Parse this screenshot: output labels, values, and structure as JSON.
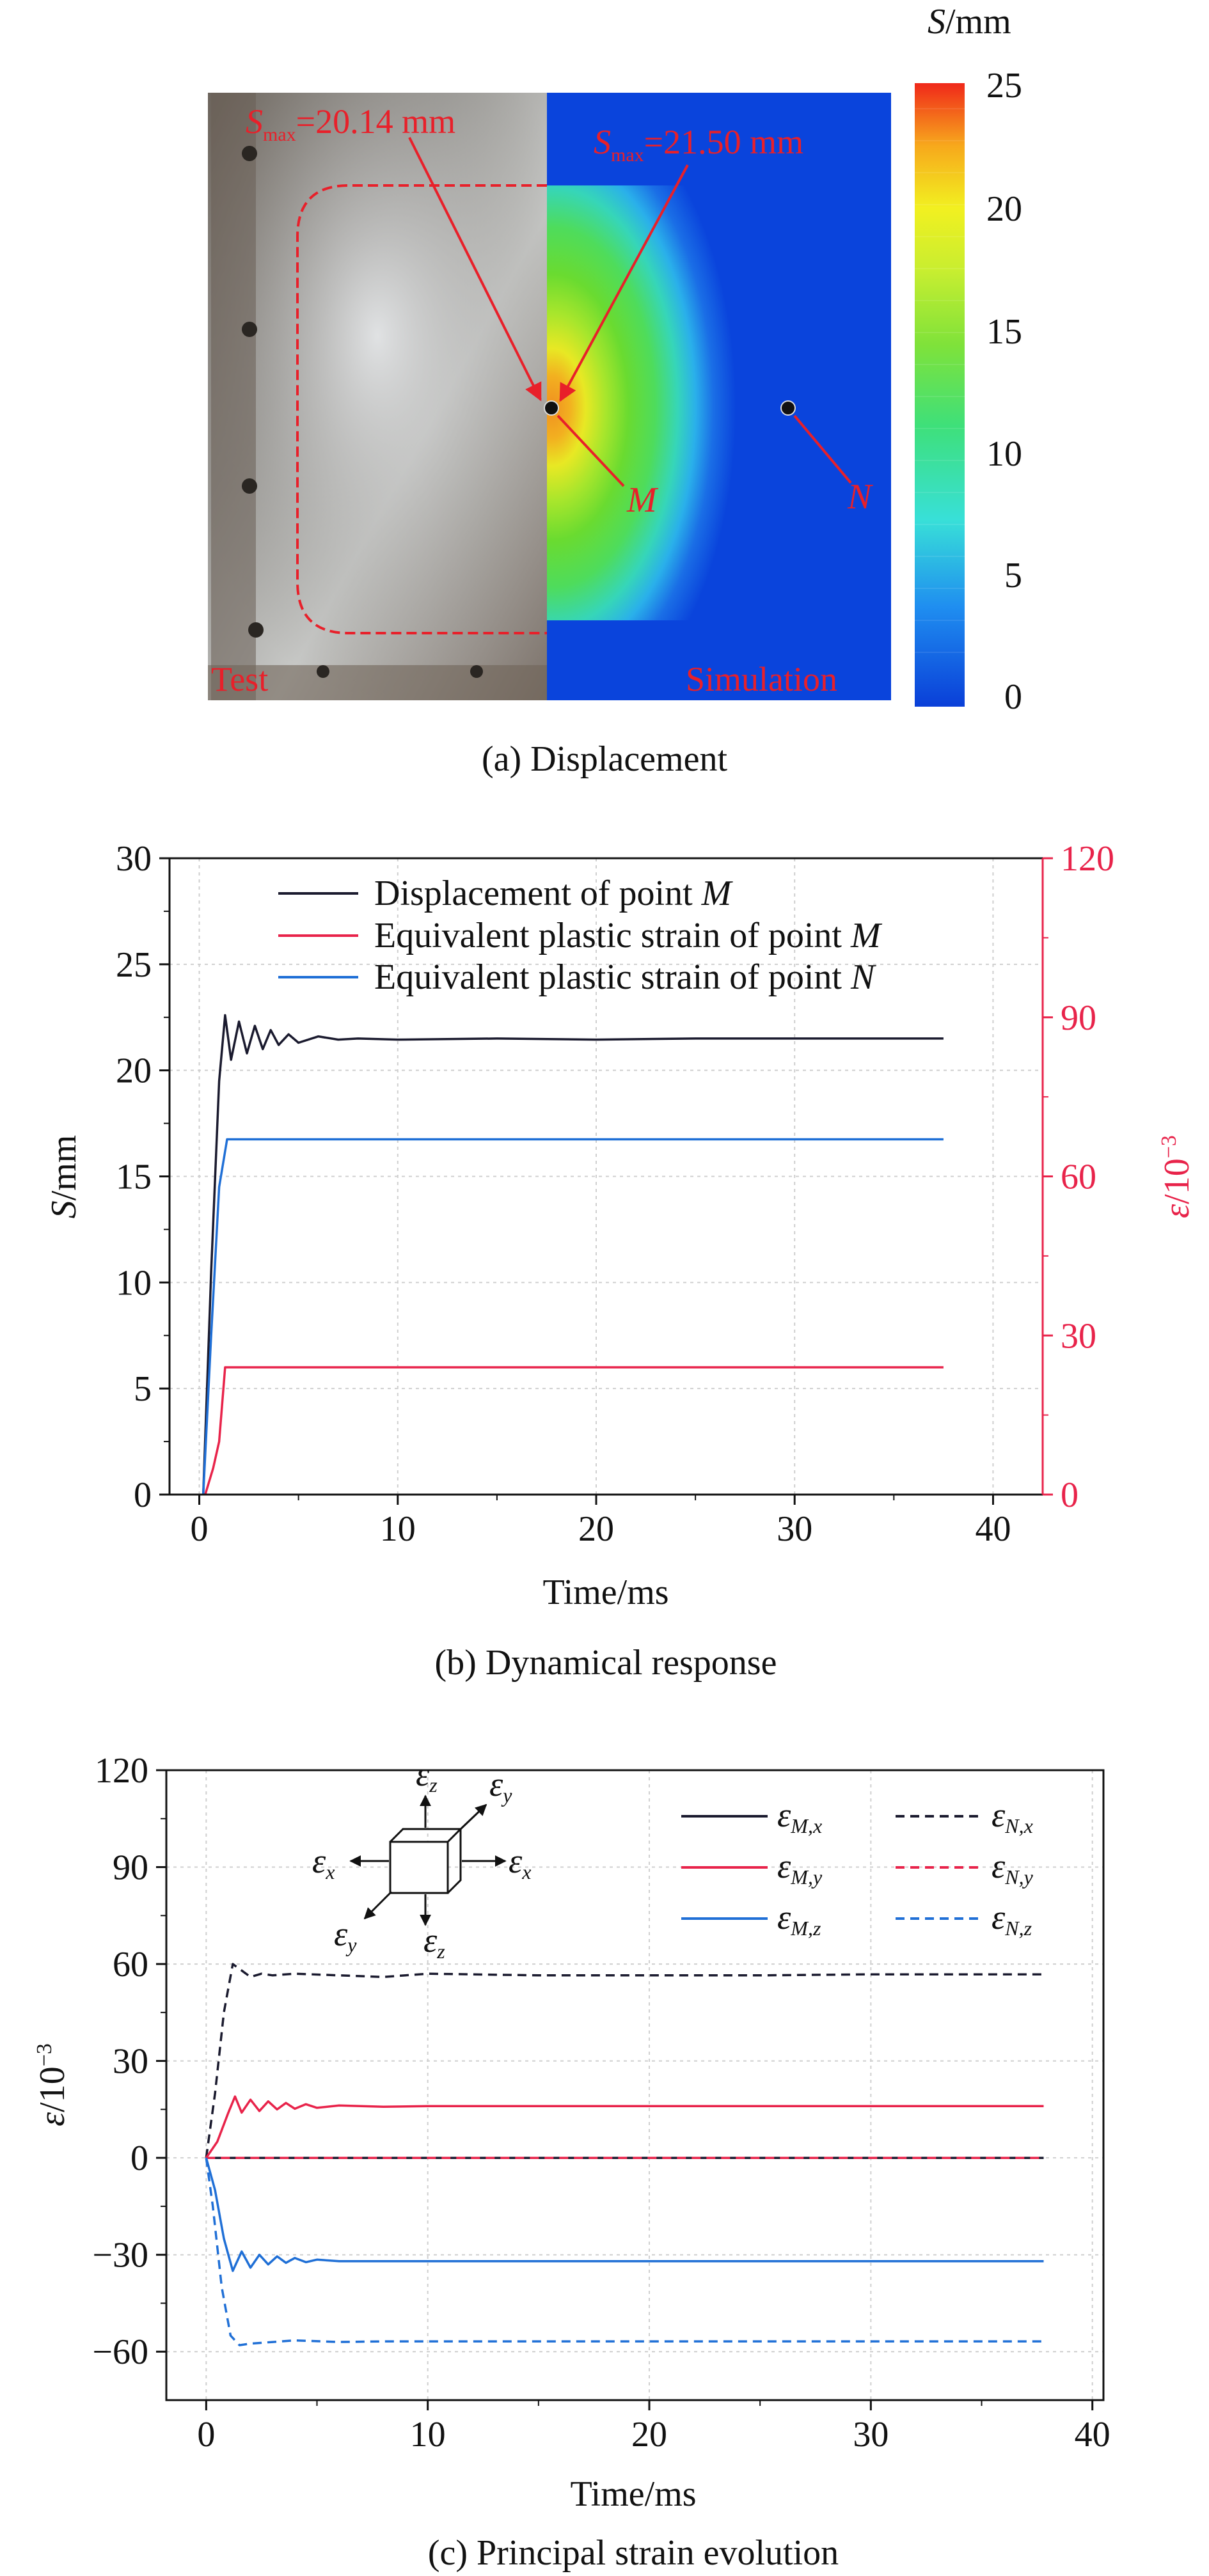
{
  "figure": {
    "panel_a": {
      "caption": "(a) Displacement",
      "colorbar_unit_var": "S",
      "colorbar_unit": "/mm",
      "colorbar_ticks": [
        "25",
        "20",
        "15",
        "10",
        "5",
        "0"
      ],
      "test_smax_var": "S",
      "test_smax_sub": "max",
      "test_smax_value": "=20.14 mm",
      "sim_smax_var": "S",
      "sim_smax_sub": "max",
      "sim_smax_value": "=21.50 mm",
      "point_m": "M",
      "point_n": "N",
      "label_test": "Test",
      "label_simulation": "Simulation"
    },
    "panel_b": {
      "caption": "(b) Dynamical response",
      "xlabel": "Time/ms",
      "ylabel_var": "S",
      "ylabel_unit": "/mm",
      "y2label_var": "ε",
      "y2label_unit": "/10",
      "y2label_exp": "−3",
      "legend": [
        {
          "text": "Displacement of point ",
          "var": "M"
        },
        {
          "text": "Equivalent plastic strain of point ",
          "var": "M"
        },
        {
          "text": "Equivalent plastic strain of point ",
          "var": "N"
        }
      ]
    },
    "panel_c": {
      "caption": "(c) Principal strain evolution",
      "xlabel": "Time/ms",
      "ylabel_var": "ε",
      "ylabel_unit": "/10",
      "ylabel_exp": "−3",
      "legend": [
        {
          "sub": "M,x"
        },
        {
          "sub": "N,x"
        },
        {
          "sub": "M,y"
        },
        {
          "sub": "N,y"
        },
        {
          "sub": "M,z"
        },
        {
          "sub": "N,z"
        }
      ],
      "axis_icon": {
        "var": "ε",
        "labels": [
          "z",
          "y",
          "x",
          "x",
          "y",
          "z"
        ]
      }
    }
  },
  "colors": {
    "black": "#1a1a2e",
    "red": "#e8234a",
    "blue": "#1f6fd6",
    "grid": "#cfcfcf",
    "annotation_red": "#e8202a"
  },
  "chart_data": [
    {
      "type": "line",
      "title": "(b) Dynamical response",
      "xlabel": "Time/ms",
      "ylabel": "S/mm",
      "y2label": "ε/10−3",
      "xlim": [
        -1.5,
        42.5
      ],
      "ylim": [
        0,
        30
      ],
      "y2lim": [
        0,
        120
      ],
      "xticks": [
        0,
        10,
        20,
        30,
        40
      ],
      "yticks": [
        0,
        5,
        10,
        15,
        20,
        25,
        30
      ],
      "y2ticks": [
        0,
        30,
        60,
        90,
        120
      ],
      "grid": true,
      "legend_position": "top",
      "series": [
        {
          "name": "Displacement of point M",
          "axis": "left",
          "color": "#1a1a2e",
          "x": [
            0.2,
            0.6,
            1.0,
            1.3,
            1.6,
            2.0,
            2.4,
            2.8,
            3.2,
            3.6,
            4.0,
            4.5,
            5.0,
            6.0,
            7.0,
            8.0,
            10,
            15,
            20,
            25,
            30,
            35,
            37.5
          ],
          "y": [
            0,
            10.5,
            19.5,
            22.6,
            20.5,
            22.3,
            20.8,
            22.1,
            21.0,
            21.9,
            21.2,
            21.7,
            21.3,
            21.6,
            21.45,
            21.5,
            21.45,
            21.5,
            21.45,
            21.5,
            21.5,
            21.5,
            21.5
          ]
        },
        {
          "name": "Equivalent plastic strain of point M",
          "axis": "right",
          "color": "#e8234a",
          "x": [
            0.3,
            0.7,
            1.0,
            1.3,
            1.6,
            2.0,
            10,
            20,
            30,
            37.5
          ],
          "y": [
            0,
            5,
            10,
            24,
            24,
            24,
            24,
            24,
            24,
            24
          ]
        },
        {
          "name": "Equivalent plastic strain of point N",
          "axis": "right",
          "color": "#1f6fd6",
          "x": [
            0.2,
            0.6,
            1.0,
            1.4,
            1.8,
            2.5,
            10,
            20,
            30,
            37.5
          ],
          "y": [
            0,
            30,
            58,
            67,
            67,
            67,
            67,
            67,
            67,
            67
          ]
        }
      ]
    },
    {
      "type": "line",
      "title": "(c) Principal strain evolution",
      "xlabel": "Time/ms",
      "ylabel": "ε/10−3",
      "xlim": [
        -1.8,
        40.5
      ],
      "ylim": [
        -75,
        120
      ],
      "xticks": [
        0,
        10,
        20,
        30,
        40
      ],
      "yticks": [
        -60,
        -30,
        0,
        30,
        60,
        90,
        120
      ],
      "grid": true,
      "legend_position": "top-right",
      "series": [
        {
          "name": "εM,x",
          "style": "solid",
          "color": "#1a1a2e",
          "x": [
            0,
            37.8
          ],
          "y": [
            0,
            0
          ]
        },
        {
          "name": "εN,x",
          "style": "dashed",
          "color": "#1a1a2e",
          "x": [
            0,
            0.4,
            0.8,
            1.2,
            1.6,
            2.0,
            2.5,
            3,
            4,
            6,
            8,
            10,
            15,
            20,
            25,
            30,
            37.8
          ],
          "y": [
            0,
            20,
            45,
            60,
            58,
            56,
            57,
            56.5,
            57,
            56.5,
            56,
            57,
            56.5,
            56.5,
            56.5,
            56.8,
            56.8
          ]
        },
        {
          "name": "εM,y",
          "style": "solid",
          "color": "#e8234a",
          "x": [
            0,
            0.5,
            1.0,
            1.3,
            1.6,
            2.0,
            2.4,
            2.8,
            3.2,
            3.6,
            4.0,
            4.5,
            5,
            6,
            8,
            10,
            20,
            30,
            37.8
          ],
          "y": [
            0,
            5,
            14,
            19,
            14,
            18,
            14.5,
            17.5,
            15,
            17,
            15.2,
            16.6,
            15.5,
            16.2,
            15.8,
            16,
            16,
            16,
            16
          ]
        },
        {
          "name": "εN,y",
          "style": "dashed",
          "color": "#e8234a",
          "x": [
            0,
            37.8
          ],
          "y": [
            0,
            0
          ]
        },
        {
          "name": "εM,z",
          "style": "solid",
          "color": "#1f6fd6",
          "x": [
            0,
            0.4,
            0.8,
            1.2,
            1.6,
            2.0,
            2.4,
            2.8,
            3.2,
            3.6,
            4.0,
            4.5,
            5,
            6,
            8,
            10,
            20,
            30,
            37.8
          ],
          "y": [
            0,
            -10,
            -25,
            -35,
            -29,
            -34,
            -30,
            -33,
            -30.5,
            -32.5,
            -31,
            -32.3,
            -31.5,
            -32,
            -32,
            -32,
            -32,
            -32,
            -32
          ]
        },
        {
          "name": "εN,z",
          "style": "dashed",
          "color": "#1f6fd6",
          "x": [
            0,
            0.3,
            0.7,
            1.1,
            1.5,
            2.0,
            3,
            4,
            6,
            8,
            10,
            20,
            30,
            37.8
          ],
          "y": [
            0,
            -15,
            -40,
            -55,
            -58,
            -57.5,
            -57,
            -56.5,
            -57,
            -56.8,
            -56.8,
            -56.8,
            -56.8,
            -56.8
          ]
        }
      ]
    }
  ]
}
